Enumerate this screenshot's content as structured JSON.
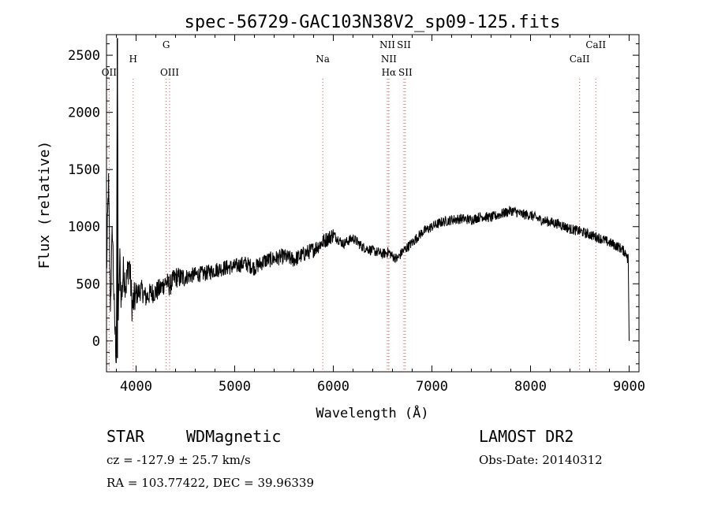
{
  "chart_data": {
    "type": "line",
    "title": "spec-56729-GAC103N38V2_sp09-125.fits",
    "xlabel": "Wavelength (Å)",
    "ylabel": "Flux (relative)",
    "xlim": [
      3700,
      9100
    ],
    "ylim": [
      -270,
      2680
    ],
    "xticks": [
      4000,
      5000,
      6000,
      7000,
      8000,
      9000
    ],
    "yticks": [
      0,
      500,
      1000,
      1500,
      2000,
      2500
    ],
    "grid": false,
    "series": [
      {
        "x": [
          3700,
          3720,
          3740,
          3760,
          3780,
          3800,
          3810,
          3820,
          3835,
          3850,
          3870,
          3900,
          3930,
          3960,
          4000,
          4050,
          4100,
          4150,
          4200,
          4250,
          4300,
          4340,
          4400,
          4450,
          4500,
          4600,
          4700,
          4800,
          4900,
          5000,
          5100,
          5200,
          5300,
          5400,
          5500,
          5600,
          5700,
          5800,
          5900,
          6000,
          6100,
          6200,
          6300,
          6400,
          6500,
          6563,
          6600,
          6650,
          6700,
          6800,
          6900,
          7000,
          7100,
          7200,
          7300,
          7400,
          7500,
          7600,
          7700,
          7800,
          7850,
          7900,
          8000,
          8100,
          8200,
          8300,
          8400,
          8500,
          8600,
          8700,
          8800,
          8900,
          8980,
          9000
        ],
        "y": [
          580,
          1400,
          300,
          1000,
          200,
          -150,
          2650,
          200,
          700,
          350,
          600,
          500,
          700,
          300,
          400,
          450,
          380,
          420,
          430,
          460,
          520,
          480,
          560,
          550,
          560,
          580,
          590,
          620,
          640,
          650,
          680,
          640,
          700,
          720,
          740,
          710,
          760,
          800,
          870,
          930,
          850,
          900,
          820,
          790,
          760,
          780,
          740,
          720,
          780,
          860,
          950,
          1000,
          1040,
          1060,
          1070,
          1060,
          1090,
          1080,
          1110,
          1140,
          1130,
          1110,
          1100,
          1060,
          1040,
          1020,
          980,
          960,
          930,
          900,
          860,
          820,
          760,
          0
        ]
      }
    ],
    "lines": [
      {
        "label": "OII",
        "x": 3727,
        "label_row": 3
      },
      {
        "label": "H",
        "x": 3970,
        "label_row": 2
      },
      {
        "label": "G",
        "x": 4305,
        "label_row": 1
      },
      {
        "label": "OIII",
        "x": 4340,
        "label_row": 3
      },
      {
        "label": "Na",
        "x": 5893,
        "label_row": 2
      },
      {
        "label": "NII",
        "x": 6548,
        "label_row": 1
      },
      {
        "label": "NII",
        "x": 6563,
        "label_row": 2
      },
      {
        "label": "Hα",
        "x": 6563,
        "label_row": 3
      },
      {
        "label": "SII",
        "x": 6716,
        "label_row": 1
      },
      {
        "label": "SII",
        "x": 6731,
        "label_row": 3
      },
      {
        "label": "CaII",
        "x": 8498,
        "label_row": 2
      },
      {
        "label": "CaII",
        "x": 8662,
        "label_row": 1
      }
    ]
  },
  "info": {
    "class": "STAR",
    "subclass": "WDMagnetic",
    "survey": "LAMOST DR2",
    "redshift": "cz = -127.9 ± 25.7 km/s",
    "obsdate": "Obs-Date: 20140312",
    "coords": "RA = 103.77422, DEC =  39.96339"
  }
}
